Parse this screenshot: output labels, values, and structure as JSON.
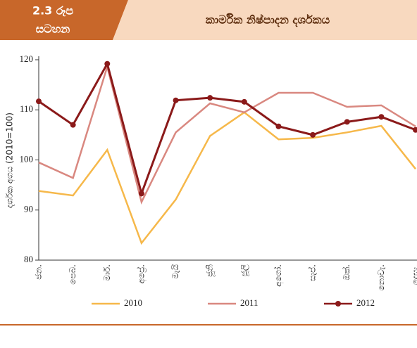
{
  "header": {
    "figure_number": "2.3 රූප",
    "figure_word": "සටහන"
  },
  "chart_data": {
    "type": "line",
    "title": "කාර්මික නිෂ්පාදන දර්ශකය",
    "y_label": "දර්ශක අගය (2010=100)",
    "categories": [
      "ජන.",
      "පෙබ.",
      "මාර්.",
      "අප්‍රේ.",
      "මැයි",
      "ජූනි",
      "ජූලි",
      "අගෝ.",
      "සැප්.",
      "ඔක්.",
      "නොවැ.",
      "දෙසැ."
    ],
    "series": [
      {
        "name": "2010",
        "color": "#f6b84a",
        "values": [
          93.8,
          92.9,
          102.0,
          83.4,
          92.1,
          104.8,
          109.5,
          104.1,
          104.4,
          105.5,
          106.8,
          98.2
        ]
      },
      {
        "name": "2011",
        "color": "#d98880",
        "values": [
          99.5,
          96.4,
          118.6,
          91.6,
          105.5,
          111.3,
          109.5,
          113.4,
          113.4,
          110.6,
          110.9,
          106.7
        ]
      },
      {
        "name": "2012",
        "color": "#8b1a1a",
        "markers": true,
        "values": [
          111.7,
          107.0,
          119.2,
          93.3,
          111.9,
          112.4,
          111.6,
          106.7,
          105.0,
          107.6,
          108.6,
          106.0
        ]
      }
    ],
    "ylim": [
      80,
      120
    ],
    "yticks": [
      80,
      90,
      100,
      110,
      120
    ],
    "grid": false,
    "legend": "bottom"
  }
}
